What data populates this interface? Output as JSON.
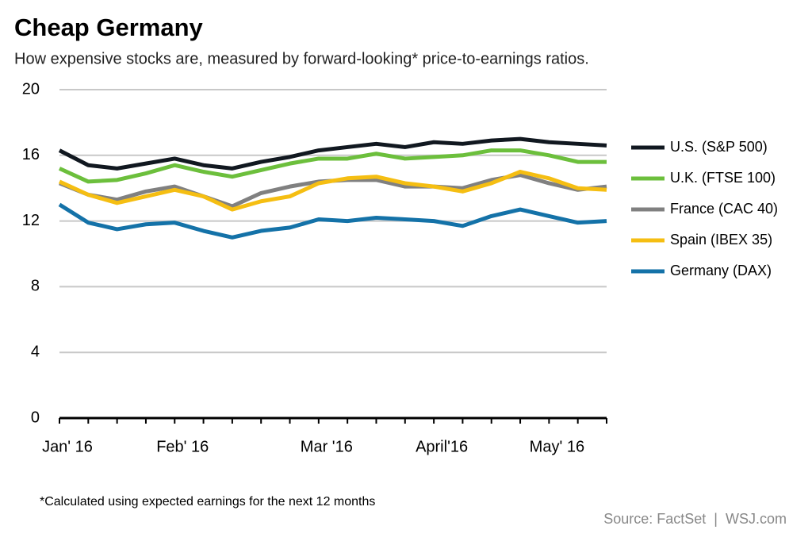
{
  "chart_data": {
    "type": "line",
    "title": "Cheap Germany",
    "subtitle": "How expensive stocks are, measured by forward-looking* price-to-earnings ratios.",
    "footnote": "*Calculated using expected earnings for the next 12 months",
    "source": "Source: FactSet  |  WSJ.com",
    "categories": [
      "Jan' 16",
      null,
      null,
      null,
      "Feb' 16",
      null,
      null,
      null,
      null,
      "Mar '16",
      null,
      null,
      null,
      "April'16",
      null,
      null,
      null,
      "May' 16",
      null,
      null
    ],
    "series": [
      {
        "name": "U.S. (S&P 500)",
        "color": "#111820",
        "values": [
          16.3,
          15.4,
          15.2,
          15.5,
          15.8,
          15.4,
          15.2,
          15.6,
          15.9,
          16.3,
          16.5,
          16.7,
          16.5,
          16.8,
          16.7,
          16.9,
          17.0,
          16.8,
          16.7,
          16.6
        ]
      },
      {
        "name": "U.K. (FTSE 100)",
        "color": "#6cbf3c",
        "values": [
          15.2,
          14.4,
          14.5,
          14.9,
          15.4,
          15.0,
          14.7,
          15.1,
          15.5,
          15.8,
          15.8,
          16.1,
          15.8,
          15.9,
          16.0,
          16.3,
          16.3,
          16.0,
          15.6,
          15.6
        ]
      },
      {
        "name": "France (CAC 40)",
        "color": "#808080",
        "values": [
          14.3,
          13.6,
          13.3,
          13.8,
          14.1,
          13.5,
          12.9,
          13.7,
          14.1,
          14.4,
          14.5,
          14.5,
          14.1,
          14.1,
          14.0,
          14.5,
          14.8,
          14.3,
          13.9,
          14.1
        ]
      },
      {
        "name": "Spain (IBEX 35)",
        "color": "#f5be12",
        "values": [
          14.4,
          13.6,
          13.1,
          13.5,
          13.9,
          13.5,
          12.7,
          13.2,
          13.5,
          14.3,
          14.6,
          14.7,
          14.3,
          14.1,
          13.8,
          14.3,
          15.0,
          14.6,
          14.0,
          13.9
        ]
      },
      {
        "name": "Germany (DAX)",
        "color": "#1472a8",
        "values": [
          13.0,
          11.9,
          11.5,
          11.8,
          11.9,
          11.4,
          11.0,
          11.4,
          11.6,
          12.1,
          12.0,
          12.2,
          12.1,
          12.0,
          11.7,
          12.3,
          12.7,
          12.3,
          11.9,
          12.0
        ]
      }
    ],
    "ylim": [
      0,
      20
    ],
    "yticks": [
      0,
      4,
      8,
      12,
      16,
      20
    ],
    "grid": true,
    "legend": "right"
  }
}
